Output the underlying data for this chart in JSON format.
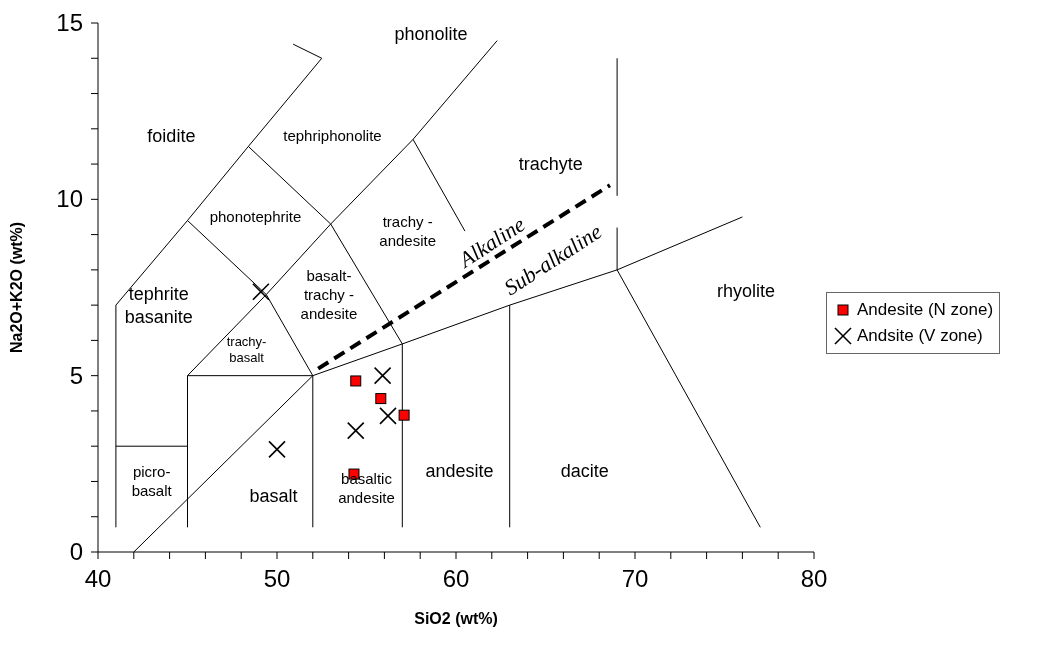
{
  "chart_data": {
    "type": "scatter",
    "xlabel": "SiO2 (wt%)",
    "ylabel": "Na2O+K2O (wt%)",
    "xlim": [
      40,
      80
    ],
    "ylim": [
      0,
      15
    ],
    "xticks": [
      40,
      {
        "value": 42,
        "label": null
      },
      {
        "value": 44,
        "label": null
      },
      {
        "value": 46,
        "label": null
      },
      {
        "value": 48,
        "label": null
      },
      50,
      {
        "value": 52,
        "label": null
      },
      {
        "value": 54,
        "label": null
      },
      {
        "value": 56,
        "label": null
      },
      {
        "value": 58,
        "label": null
      },
      60,
      {
        "value": 62,
        "label": null
      },
      {
        "value": 64,
        "label": null
      },
      {
        "value": 66,
        "label": null
      },
      {
        "value": 68,
        "label": null
      },
      70,
      {
        "value": 72,
        "label": null
      },
      {
        "value": 74,
        "label": null
      },
      {
        "value": 76,
        "label": null
      },
      {
        "value": 78,
        "label": null
      },
      80
    ],
    "yticks": [
      0,
      {
        "value": 1,
        "label": null
      },
      {
        "value": 2,
        "label": null
      },
      {
        "value": 3,
        "label": null
      },
      {
        "value": 4,
        "label": null
      },
      5,
      {
        "value": 6,
        "label": null
      },
      {
        "value": 7,
        "label": null
      },
      {
        "value": 8,
        "label": null
      },
      {
        "value": 9,
        "label": null
      },
      10,
      {
        "value": 11,
        "label": null
      },
      {
        "value": 12,
        "label": null
      },
      {
        "value": 13,
        "label": null
      },
      {
        "value": 14,
        "label": null
      },
      15
    ],
    "legend": "right",
    "series": [
      {
        "type": "line",
        "color": "#000000",
        "marker": "none",
        "x": [
          41,
          41,
          45,
          48.4,
          52.5,
          50.9
        ],
        "values": [
          0.7,
          7,
          9.4,
          11.5,
          14,
          14.4
        ]
      },
      {
        "type": "line",
        "color": "#000000",
        "marker": "none",
        "x": [
          41,
          45
        ],
        "values": [
          3,
          3
        ]
      },
      {
        "type": "line",
        "color": "#000000",
        "marker": "none",
        "x": [
          45,
          45,
          49.4,
          53,
          57.6,
          62.3
        ],
        "values": [
          0.7,
          5,
          7.3,
          9.3,
          11.7,
          14.5
        ]
      },
      {
        "type": "line",
        "color": "#000000",
        "marker": "none",
        "x": [
          52,
          52,
          57,
          63,
          69,
          76
        ],
        "values": [
          0.7,
          5,
          5.9,
          7,
          8,
          9.5
        ]
      },
      {
        "type": "line",
        "color": "#000000",
        "marker": "none",
        "x": [
          57,
          57
        ],
        "values": [
          0.7,
          5.9
        ]
      },
      {
        "type": "line",
        "color": "#000000",
        "marker": "none",
        "x": [
          63,
          63
        ],
        "values": [
          0.7,
          7
        ]
      },
      {
        "type": "line",
        "color": "#000000",
        "marker": "none",
        "x": [
          69,
          77
        ],
        "values": [
          8,
          0.7
        ]
      },
      {
        "type": "line",
        "color": "#000000",
        "marker": "none",
        "x": [
          69,
          69
        ],
        "values": [
          14,
          10.1
        ]
      },
      {
        "type": "line",
        "color": "#000000",
        "marker": "none",
        "x": [
          69,
          69
        ],
        "values": [
          9.2,
          8
        ]
      },
      {
        "type": "line",
        "color": "#000000",
        "marker": "none",
        "x": [
          45,
          52
        ],
        "values": [
          5,
          5
        ]
      },
      {
        "type": "line",
        "color": "#000000",
        "marker": "none",
        "x": [
          45,
          49.4,
          52
        ],
        "values": [
          9.4,
          7.3,
          5
        ]
      },
      {
        "type": "line",
        "color": "#000000",
        "marker": "none",
        "x": [
          48.4,
          53,
          57
        ],
        "values": [
          11.5,
          9.3,
          5.9
        ]
      },
      {
        "type": "line",
        "color": "#000000",
        "marker": "none",
        "x": [
          57.6,
          60.5
        ],
        "values": [
          11.7,
          9.1
        ]
      },
      {
        "type": "line",
        "color": "#000000",
        "marker": "none",
        "x": [
          42,
          52
        ],
        "values": [
          0,
          5
        ]
      },
      {
        "type": "line",
        "color": "#000000",
        "marker": "none",
        "line_style": "dashed",
        "x": [
          52.3,
          68.6
        ],
        "values": [
          5.2,
          10.4
        ]
      },
      {
        "name": "Andesite (N zone)",
        "color": "#ff0000",
        "marker": "square",
        "x": [
          54.4,
          55.8,
          57.1,
          54.3
        ],
        "values": [
          4.85,
          4.35,
          3.88,
          2.21
        ]
      },
      {
        "name": "Andsite (V zone)",
        "color": "#000000",
        "marker": "cross",
        "x": [
          49.1,
          55.9,
          56.2,
          54.4,
          50.0
        ],
        "values": [
          7.38,
          5.0,
          3.86,
          3.44,
          2.91
        ]
      }
    ],
    "annotations": [
      "foidite",
      "phonolite",
      "tephriphonolite",
      "trachyte",
      "phonotephrite",
      "trachy -\nandesite",
      "basalt-\ntrachy -\nandesite",
      "tephrite\nbasanite",
      "trachy-\nbasalt",
      "rhyolite",
      "picro-\nbasalt",
      "basalt",
      "basaltic\nandesite",
      "andesite",
      "dacite",
      "Alkaline",
      "Sub-alkaline"
    ]
  }
}
